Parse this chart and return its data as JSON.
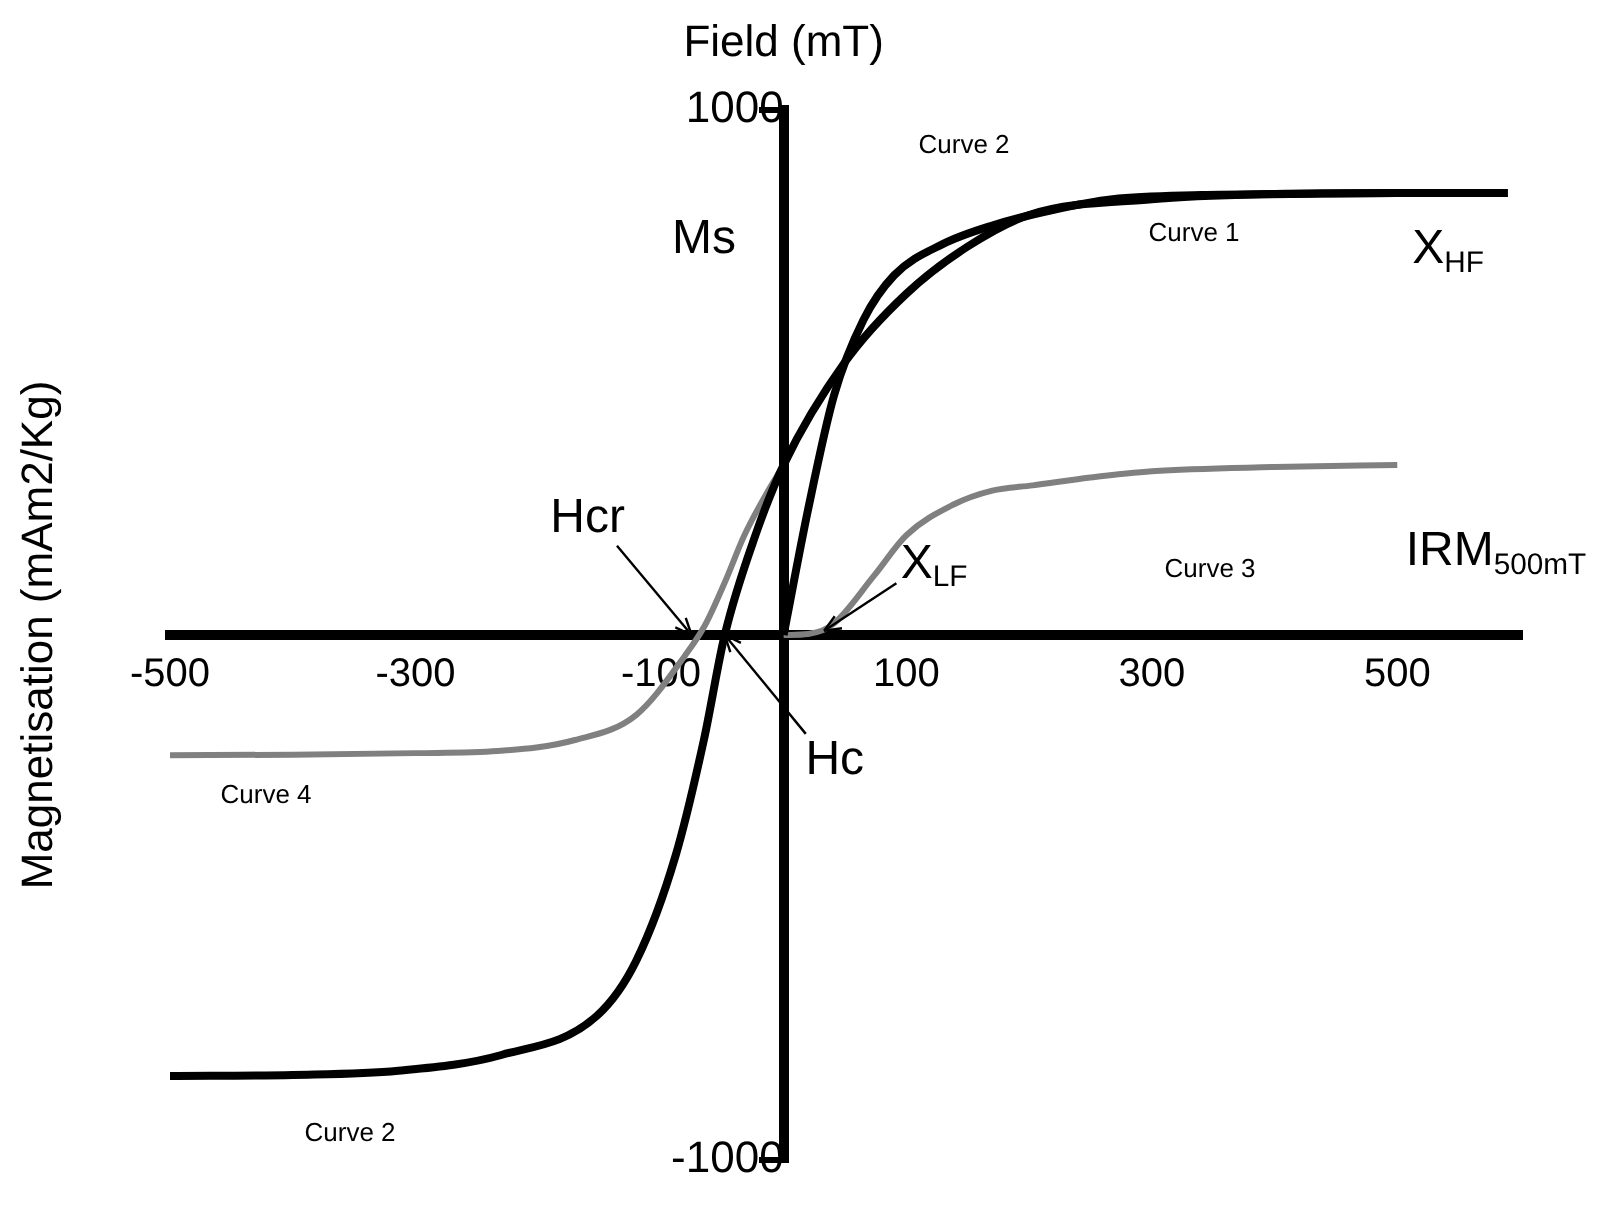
{
  "chart_data": {
    "type": "line",
    "xlabel": "Field (mT)",
    "ylabel": "Magnetisation (mAm2/Kg)",
    "xlim": [
      -500,
      600
    ],
    "xticks": [
      -500,
      -300,
      -100,
      100,
      300,
      500
    ],
    "ylim": [
      -1000,
      1000
    ],
    "yticks": [
      1000,
      -1000
    ],
    "grid": false,
    "legend": false,
    "marker": "none",
    "series": [
      {
        "color": "#000000",
        "x": [
          0,
          20,
          41,
          65,
          90,
          130,
          170,
          220,
          268,
          340,
          413,
          500,
          590
        ],
        "values": [
          0,
          240,
          456,
          600,
          685,
          745,
          780,
          810,
          830,
          838,
          840,
          842,
          842
        ]
      },
      {
        "color": "#000000",
        "x": [
          -500,
          -400,
          -314,
          -230,
          -152,
          -120,
          -88,
          -65,
          -48,
          -23,
          0,
          50,
          100,
          150,
          200,
          300,
          400,
          500,
          590
        ],
        "values": [
          -840,
          -838,
          -830,
          -800,
          -725,
          -620,
          -420,
          -200,
          0,
          190,
          324,
          520,
          650,
          740,
          800,
          830,
          840,
          842,
          842
        ]
      },
      {
        "color": "#808080",
        "x": [
          0,
          20,
          40,
          74,
          100,
          138,
          170,
          203,
          250,
          300,
          400,
          500
        ],
        "values": [
          0,
          2,
          20,
          114,
          190,
          248,
          275,
          285,
          300,
          312,
          320,
          324
        ]
      },
      {
        "color": "#808080",
        "x": [
          -500,
          -400,
          -300,
          -233,
          -170,
          -120,
          -80,
          -64,
          -48,
          -32,
          -15,
          0
        ],
        "values": [
          -229,
          -228,
          -225,
          -221,
          -200,
          -152,
          -38,
          19,
          100,
          190,
          265,
          324
        ]
      }
    ],
    "annotations": [
      "Curve 2",
      "Curve 1",
      "Ms",
      "X$_{HF}$",
      "Curve 3",
      "IRM$_{500mT}$",
      {
        "text": "X$_{LF}$",
        "x": 33,
        "y": 8
      },
      {
        "text": "Hcr",
        "x": -75,
        "y": 0
      },
      {
        "text": "Hc",
        "x": -48,
        "y": 0
      },
      "Curve 4",
      "Curve 2"
    ]
  }
}
